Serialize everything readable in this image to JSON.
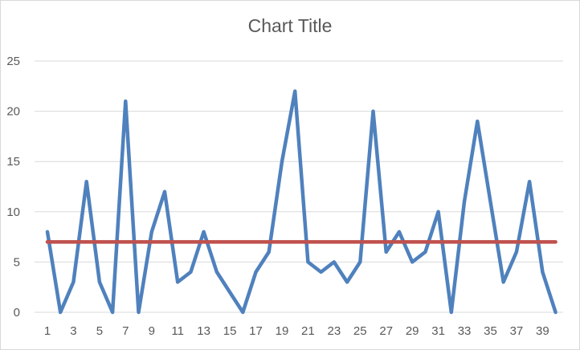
{
  "chart_data": {
    "type": "line",
    "title": "Chart Title",
    "x": [
      1,
      2,
      3,
      4,
      5,
      6,
      7,
      8,
      9,
      10,
      11,
      12,
      13,
      14,
      15,
      16,
      17,
      18,
      19,
      20,
      21,
      22,
      23,
      24,
      25,
      26,
      27,
      28,
      29,
      30,
      31,
      32,
      33,
      34,
      35,
      36,
      37,
      38,
      39,
      40
    ],
    "x_tick_labels": [
      "1",
      "3",
      "5",
      "7",
      "9",
      "11",
      "13",
      "15",
      "17",
      "19",
      "21",
      "23",
      "25",
      "27",
      "29",
      "31",
      "33",
      "35",
      "37",
      "39"
    ],
    "ylim": [
      0,
      25
    ],
    "y_ticks": [
      0,
      5,
      10,
      15,
      20,
      25
    ],
    "grid": true,
    "series": [
      {
        "values": [
          8,
          0,
          3,
          13,
          3,
          0,
          21,
          0,
          8,
          12,
          3,
          4,
          8,
          4,
          2,
          0,
          4,
          6,
          15,
          22,
          5,
          4,
          5,
          3,
          5,
          20,
          6,
          8,
          5,
          6,
          10,
          0,
          11,
          19,
          11,
          3,
          6,
          13,
          4,
          0
        ],
        "color": "#4f81bd"
      },
      {
        "values": [
          7,
          7,
          7,
          7,
          7,
          7,
          7,
          7,
          7,
          7,
          7,
          7,
          7,
          7,
          7,
          7,
          7,
          7,
          7,
          7,
          7,
          7,
          7,
          7,
          7,
          7,
          7,
          7,
          7,
          7,
          7,
          7,
          7,
          7,
          7,
          7,
          7,
          7,
          7,
          7
        ],
        "color": "#c0504d"
      }
    ],
    "gridline_color": "#d9d9d9",
    "text_color": "#595959"
  }
}
